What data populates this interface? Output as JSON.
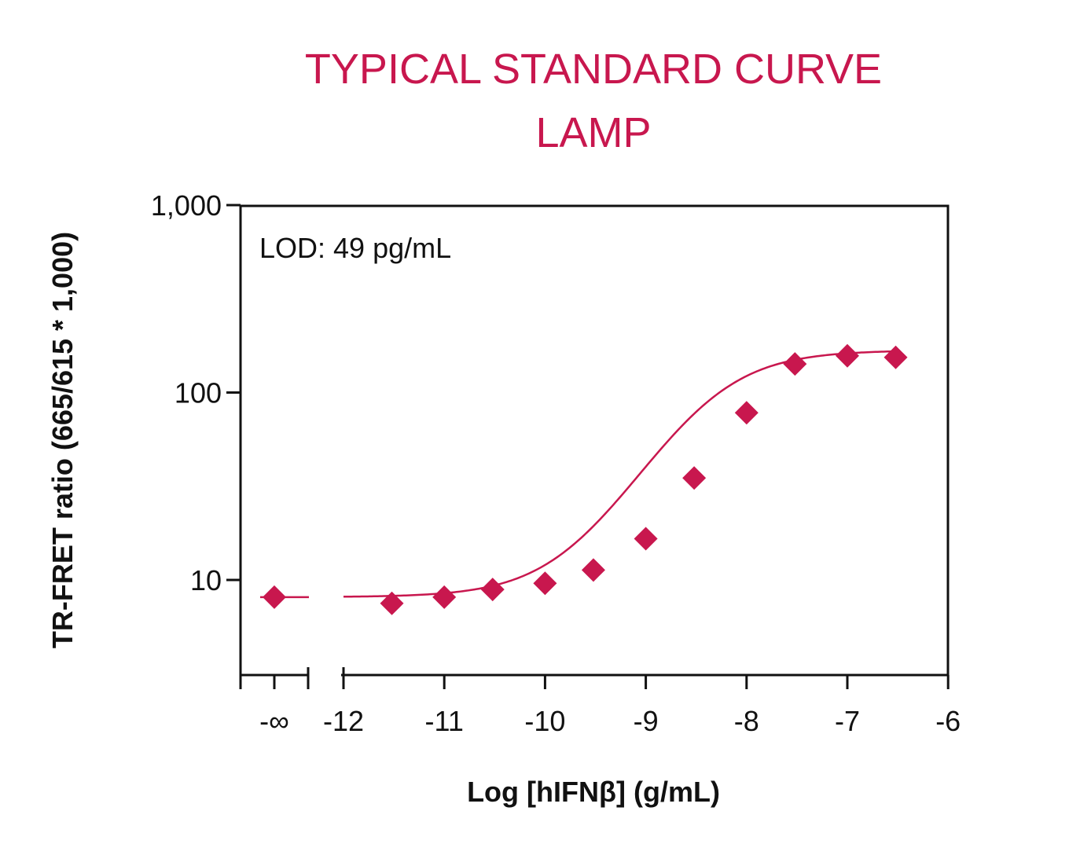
{
  "chart_data": {
    "type": "scatter",
    "title": [
      "TYPICAL STANDARD CURVE",
      "LAMP"
    ],
    "xlabel": "Log [hIFNβ] (g/mL)",
    "ylabel": "TR-FRET ratio (665/615 * 1,000)",
    "annotation": "LOD: 49 pg/mL",
    "y_scale": "log",
    "ylim": [
      3.2,
      1000
    ],
    "xlim": [
      -12,
      -6
    ],
    "x_ticks": [
      {
        "value": "-inf",
        "label": "-∞"
      },
      {
        "value": -12,
        "label": "-12"
      },
      {
        "value": -11,
        "label": "-11"
      },
      {
        "value": -10,
        "label": "-10"
      },
      {
        "value": -9,
        "label": "-9"
      },
      {
        "value": -8,
        "label": "-8"
      },
      {
        "value": -7,
        "label": "-7"
      },
      {
        "value": -6,
        "label": "-6"
      }
    ],
    "y_ticks": [
      {
        "value": 10,
        "label": "10"
      },
      {
        "value": 100,
        "label": "100"
      },
      {
        "value": 1000,
        "label": "1,000"
      }
    ],
    "grid": false,
    "colors": {
      "accent": "#c8174e",
      "axis": "#111111"
    },
    "series": [
      {
        "marker": "diamond",
        "color": "#c8174e",
        "points": [
          {
            "x": "-inf",
            "y": 8.1
          },
          {
            "x": -11.52,
            "y": 7.5
          },
          {
            "x": -11.0,
            "y": 8.1
          },
          {
            "x": -10.52,
            "y": 8.9
          },
          {
            "x": -10.0,
            "y": 9.6
          },
          {
            "x": -9.52,
            "y": 11.3
          },
          {
            "x": -9.0,
            "y": 16.6
          },
          {
            "x": -8.52,
            "y": 35
          },
          {
            "x": -8.0,
            "y": 78
          },
          {
            "x": -7.52,
            "y": 142
          },
          {
            "x": -7.0,
            "y": 157
          },
          {
            "x": -6.52,
            "y": 154
          }
        ]
      }
    ],
    "fit_curve": {
      "model": "4PL",
      "bottom": 8.1,
      "top": 168,
      "log_ec50": -8.4,
      "hill": 1.0,
      "baseline_at_minus_inf": 8.1
    }
  }
}
